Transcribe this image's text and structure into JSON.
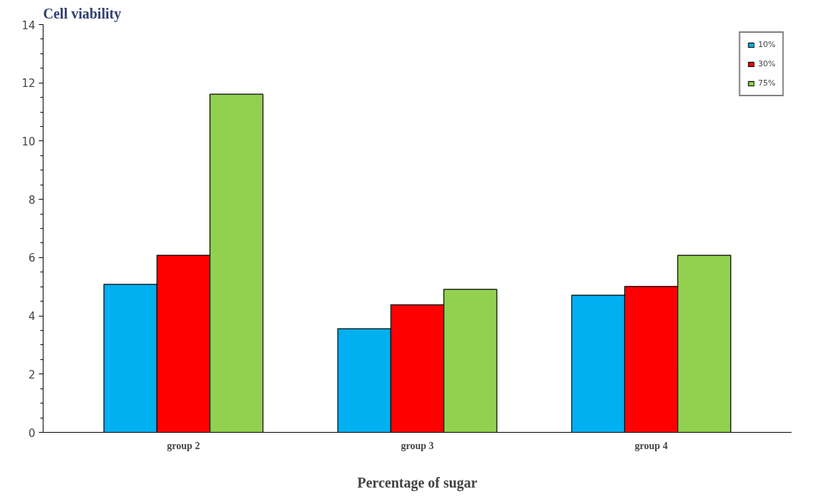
{
  "chart_data": {
    "type": "bar",
    "title": "Cell viability",
    "xlabel": "Percentage of sugar",
    "categories": [
      "group 2",
      "group 3",
      "group 4"
    ],
    "series": [
      {
        "name": "10%",
        "color": "#00b0f0",
        "values": [
          5.08,
          3.56,
          4.71
        ]
      },
      {
        "name": "30%",
        "color": "#ff0000",
        "values": [
          6.08,
          4.38,
          5.01
        ]
      },
      {
        "name": "75%",
        "color": "#92d050",
        "values": [
          11.61,
          4.91,
          6.08
        ]
      }
    ],
    "ylim": [
      0,
      14
    ],
    "yticks": [
      0,
      2,
      4,
      6,
      8,
      10,
      12,
      14
    ],
    "grid": false,
    "legend": "top right"
  }
}
